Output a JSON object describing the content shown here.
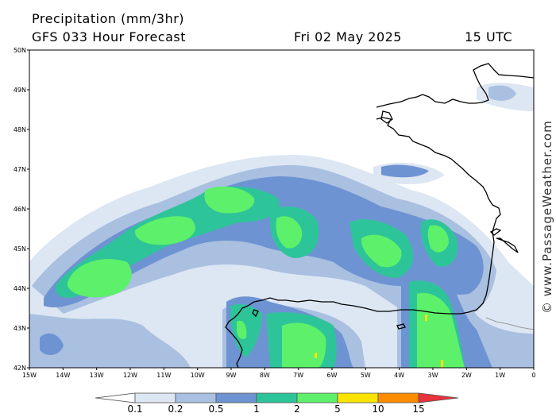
{
  "header": {
    "title": "Precipitation (mm/3hr)",
    "model": "GFS 033 Hour Forecast",
    "date": "Fri 02 May 2025",
    "time": "15 UTC"
  },
  "axes": {
    "lat_labels": [
      "50N",
      "49N",
      "48N",
      "47N",
      "46N",
      "45N",
      "44N",
      "43N",
      "42N"
    ],
    "lon_labels": [
      "15W",
      "14W",
      "13W",
      "12W",
      "11W",
      "10W",
      "9W",
      "8W",
      "7W",
      "6W",
      "5W",
      "4W",
      "3W",
      "2W",
      "1W",
      "0"
    ]
  },
  "legend": {
    "thresholds": [
      "0.1",
      "0.2",
      "0.5",
      "1",
      "2",
      "5",
      "10",
      "15"
    ],
    "colors": [
      "#ffffff",
      "#dde6f3",
      "#a9c0e0",
      "#6e93d2",
      "#2ec49a",
      "#5df06a",
      "#fce300",
      "#fb8c00",
      "#e8323c"
    ]
  },
  "watermark": "© www.PassageWeather.com",
  "colors": {
    "land_outline": "#000000",
    "border": "#999999"
  }
}
